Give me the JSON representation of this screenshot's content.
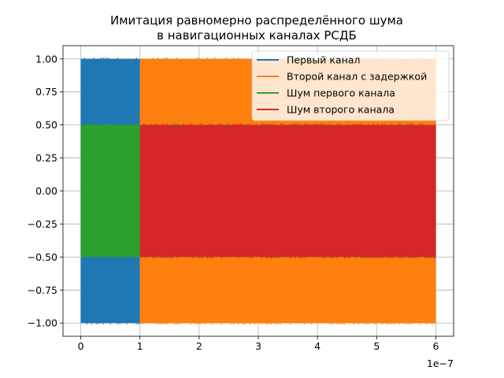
{
  "chart_data": {
    "type": "area",
    "title_line1": "Имитация равномерно распределённого шума",
    "title_line2": "в навигационных каналах РСДБ",
    "xlabel": "",
    "ylabel": "",
    "x_offset_text": "1e−7",
    "xlim": [
      -3e-08,
      6.3e-07
    ],
    "ylim": [
      -1.1,
      1.1
    ],
    "x_ticks": [
      0,
      1e-07,
      2e-07,
      3e-07,
      4e-07,
      5e-07,
      6e-07
    ],
    "x_tick_labels": [
      "0",
      "1",
      "2",
      "3",
      "4",
      "5",
      "6"
    ],
    "y_ticks": [
      1.0,
      0.75,
      0.5,
      0.25,
      0.0,
      -0.25,
      -0.5,
      -0.75,
      -1.0
    ],
    "y_tick_labels": [
      "1.00",
      "0.75",
      "0.50",
      "0.25",
      "0.00",
      "−0.25",
      "−0.50",
      "−0.75",
      "−1.00"
    ],
    "grid": true,
    "legend_position": "top-right",
    "series": [
      {
        "name": " Первый канал",
        "color": "#1f77b4",
        "x_range": [
          0,
          1e-07
        ],
        "y_range": [
          -1.0,
          1.0
        ]
      },
      {
        "name": "Второй канал с задержкой",
        "color": "#ff7f0e",
        "x_range": [
          1e-07,
          6e-07
        ],
        "y_range": [
          -1.0,
          1.0
        ]
      },
      {
        "name": "Шум первого канала",
        "color": "#2ca02c",
        "x_range": [
          0,
          6e-07
        ],
        "y_range": [
          -0.5,
          0.5
        ]
      },
      {
        "name": "Шум второго канала",
        "color": "#d62728",
        "x_range": [
          1e-07,
          6e-07
        ],
        "y_range": [
          -0.5,
          0.5
        ]
      }
    ]
  }
}
